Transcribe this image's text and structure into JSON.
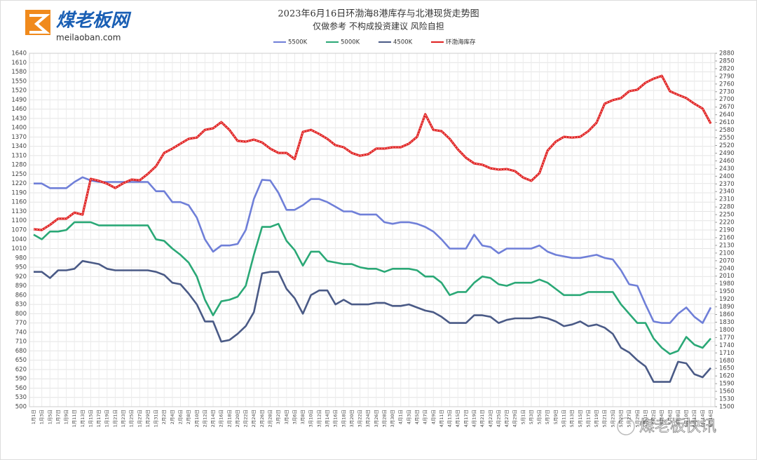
{
  "chart_data": {
    "type": "line",
    "title": "2023年6月16日环渤海8港库存与北港现货走势图",
    "subtitle": "仅做参考 不构成投资建议 风险自担",
    "categories": [
      "1月1日",
      "1月3日",
      "1月5日",
      "1月7日",
      "1月9日",
      "1月11日",
      "1月13日",
      "1月15日",
      "1月17日",
      "1月19日",
      "1月21日",
      "1月23日",
      "1月25日",
      "1月27日",
      "1月29日",
      "1月31日",
      "2月2日",
      "2月4日",
      "2月6日",
      "2月8日",
      "2月10日",
      "2月12日",
      "2月14日",
      "2月16日",
      "2月18日",
      "2月20日",
      "2月22日",
      "2月24日",
      "2月26日",
      "2月28日",
      "3月2日",
      "3月4日",
      "3月6日",
      "3月8日",
      "3月10日",
      "3月12日",
      "3月14日",
      "3月16日",
      "3月18日",
      "3月20日",
      "3月22日",
      "3月24日",
      "3月26日",
      "3月28日",
      "3月30日",
      "4月1日",
      "4月3日",
      "4月5日",
      "4月7日",
      "4月9日",
      "4月11日",
      "4月13日",
      "4月15日",
      "4月17日",
      "4月19日",
      "4月21日",
      "4月23日",
      "4月25日",
      "4月27日",
      "4月29日",
      "5月1日",
      "5月3日",
      "5月5日",
      "5月7日",
      "5月9日",
      "5月11日",
      "5月13日",
      "5月15日",
      "5月17日",
      "5月19日",
      "5月21日",
      "5月23日",
      "5月25日",
      "5月27日",
      "5月29日",
      "5月31日",
      "6月2日",
      "6月4日",
      "6月6日",
      "6月8日",
      "6月10日",
      "6月12日",
      "6月14日",
      "6月16日"
    ],
    "series": [
      {
        "name": "5500K",
        "color": "#6f7fd8",
        "values": [
          1220,
          1220,
          1205,
          1205,
          1205,
          1225,
          1240,
          1230,
          1225,
          1225,
          1225,
          1225,
          1225,
          1225,
          1225,
          1195,
          1195,
          1160,
          1160,
          1150,
          1110,
          1040,
          1000,
          1020,
          1020,
          1025,
          1070,
          1170,
          1232,
          1230,
          1190,
          1135,
          1135,
          1150,
          1170,
          1170,
          1160,
          1145,
          1130,
          1130,
          1120,
          1120,
          1120,
          1095,
          1090,
          1095,
          1095,
          1090,
          1080,
          1065,
          1040,
          1010,
          1010,
          1010,
          1055,
          1020,
          1015,
          995,
          1010,
          1010,
          1010,
          1010,
          1020,
          1000,
          990,
          985,
          980,
          980,
          985,
          990,
          980,
          975,
          940,
          895,
          890,
          830,
          775,
          770,
          770,
          800,
          820,
          790,
          770,
          820
        ]
      },
      {
        "name": "5000K",
        "color": "#2aa876",
        "values": [
          1055,
          1040,
          1065,
          1065,
          1070,
          1095,
          1095,
          1095,
          1085,
          1085,
          1085,
          1085,
          1085,
          1085,
          1085,
          1040,
          1035,
          1010,
          990,
          965,
          920,
          845,
          795,
          840,
          845,
          855,
          890,
          990,
          1080,
          1080,
          1090,
          1035,
          1005,
          955,
          1000,
          1000,
          970,
          965,
          960,
          960,
          950,
          945,
          945,
          935,
          945,
          945,
          945,
          940,
          920,
          920,
          900,
          860,
          870,
          870,
          900,
          920,
          915,
          895,
          890,
          900,
          900,
          900,
          910,
          900,
          880,
          860,
          860,
          860,
          870,
          870,
          870,
          870,
          830,
          800,
          770,
          770,
          720,
          690,
          670,
          680,
          725,
          700,
          690,
          720
        ]
      },
      {
        "name": "4500K",
        "color": "#4a5a86",
        "values": [
          935,
          935,
          915,
          940,
          940,
          945,
          970,
          965,
          960,
          945,
          940,
          940,
          940,
          940,
          940,
          935,
          925,
          900,
          895,
          865,
          830,
          775,
          775,
          710,
          715,
          735,
          760,
          805,
          930,
          935,
          935,
          880,
          850,
          800,
          860,
          875,
          875,
          830,
          845,
          830,
          830,
          830,
          835,
          835,
          825,
          825,
          830,
          820,
          810,
          805,
          790,
          770,
          770,
          770,
          795,
          795,
          790,
          770,
          780,
          785,
          785,
          785,
          790,
          785,
          775,
          760,
          765,
          775,
          760,
          765,
          755,
          735,
          690,
          675,
          650,
          630,
          580,
          580,
          580,
          645,
          640,
          605,
          595,
          625
        ]
      },
      {
        "name": "环渤海库存",
        "color": "#e02020",
        "axis": "y2",
        "values": [
          2193,
          2190,
          2210,
          2234,
          2234,
          2258,
          2250,
          2390,
          2382,
          2371,
          2354,
          2373,
          2387,
          2384,
          2409,
          2439,
          2491,
          2508,
          2527,
          2546,
          2551,
          2581,
          2587,
          2611,
          2581,
          2538,
          2535,
          2543,
          2532,
          2508,
          2491,
          2491,
          2467,
          2573,
          2581,
          2565,
          2546,
          2521,
          2513,
          2491,
          2480,
          2486,
          2508,
          2508,
          2513,
          2513,
          2527,
          2554,
          2642,
          2581,
          2576,
          2546,
          2505,
          2472,
          2450,
          2445,
          2431,
          2426,
          2428,
          2420,
          2395,
          2382,
          2412,
          2500,
          2535,
          2554,
          2551,
          2554,
          2576,
          2609,
          2683,
          2697,
          2705,
          2732,
          2738,
          2765,
          2781,
          2792,
          2732,
          2718,
          2705,
          2683,
          2664,
          2606
        ]
      }
    ],
    "ylim": [
      500,
      1640
    ],
    "yticks": [
      500,
      530,
      560,
      590,
      620,
      650,
      680,
      710,
      740,
      770,
      800,
      830,
      860,
      890,
      920,
      950,
      980,
      1010,
      1040,
      1070,
      1100,
      1130,
      1160,
      1190,
      1220,
      1250,
      1280,
      1310,
      1340,
      1370,
      1400,
      1430,
      1460,
      1490,
      1520,
      1550,
      1580,
      1610,
      1640
    ],
    "y2lim": [
      1500,
      2880
    ],
    "y2ticks": [
      1500,
      1530,
      1560,
      1590,
      1620,
      1650,
      1680,
      1710,
      1740,
      1770,
      1800,
      1830,
      1860,
      1890,
      1920,
      1950,
      1980,
      2010,
      2040,
      2070,
      2100,
      2130,
      2160,
      2190,
      2220,
      2250,
      2280,
      2310,
      2340,
      2370,
      2400,
      2430,
      2460,
      2490,
      2520,
      2550,
      2580,
      2610,
      2640,
      2670,
      2700,
      2730,
      2760,
      2790,
      2820,
      2850,
      2880
    ],
    "grid": true,
    "legend": "top"
  },
  "branding": {
    "logo_name": "煤老板网",
    "logo_domain": "meilaoban.com",
    "footer": "煤老板快讯"
  }
}
